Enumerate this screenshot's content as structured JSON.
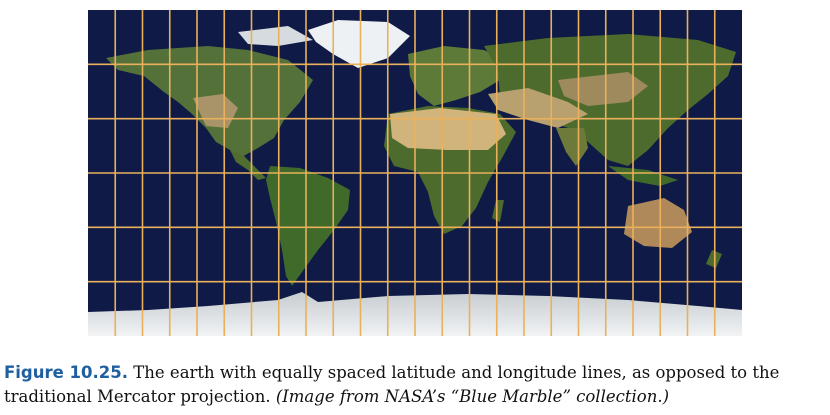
{
  "figure": {
    "label": "Figure 10.25.",
    "caption_text": "The earth with equally spaced latitude and longitude lines, as opposed to the traditional Mercator projection.",
    "credit": "(Image from NASA’s “Blue Marble” collection.)"
  },
  "map": {
    "projection": "equirectangular",
    "grid": {
      "longitude_step_deg": 15,
      "latitude_step_deg": 30,
      "line_color": "#e9b15b"
    },
    "colors": {
      "ocean": "#0f1a47",
      "land": "#4e6b2e",
      "desert": "#c9ad79",
      "ice": "#e8ecef"
    }
  }
}
